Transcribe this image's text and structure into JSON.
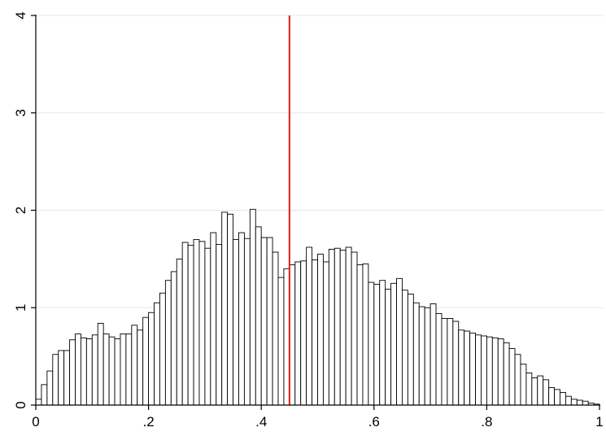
{
  "chart_data": {
    "type": "bar",
    "title": "",
    "xlabel": "",
    "ylabel": "",
    "xlim": [
      0,
      1
    ],
    "ylim": [
      0,
      4
    ],
    "grid": true,
    "x_ticks": [
      {
        "value": 0,
        "label": "0"
      },
      {
        "value": 0.2,
        "label": ".2"
      },
      {
        "value": 0.4,
        "label": ".4"
      },
      {
        "value": 0.6,
        "label": ".6"
      },
      {
        "value": 0.8,
        "label": ".8"
      },
      {
        "value": 1,
        "label": "1"
      }
    ],
    "y_ticks": [
      {
        "value": 0,
        "label": "0"
      },
      {
        "value": 1,
        "label": "1"
      },
      {
        "value": 2,
        "label": "2"
      },
      {
        "value": 3,
        "label": "3"
      },
      {
        "value": 4,
        "label": "4"
      }
    ],
    "bin_width": 0.01,
    "bin_start": 0,
    "values": [
      0.06,
      0.21,
      0.35,
      0.52,
      0.56,
      0.56,
      0.67,
      0.73,
      0.69,
      0.68,
      0.72,
      0.84,
      0.73,
      0.7,
      0.68,
      0.73,
      0.73,
      0.82,
      0.77,
      0.9,
      0.95,
      1.05,
      1.15,
      1.28,
      1.37,
      1.5,
      1.67,
      1.64,
      1.7,
      1.68,
      1.61,
      1.77,
      1.65,
      1.98,
      1.96,
      1.7,
      1.77,
      1.71,
      2.01,
      1.83,
      1.72,
      1.72,
      1.57,
      1.31,
      1.4,
      1.44,
      1.47,
      1.48,
      1.62,
      1.49,
      1.55,
      1.47,
      1.6,
      1.61,
      1.59,
      1.62,
      1.57,
      1.44,
      1.45,
      1.26,
      1.24,
      1.28,
      1.19,
      1.25,
      1.3,
      1.18,
      1.14,
      1.05,
      1.01,
      1.0,
      1.04,
      0.94,
      0.89,
      0.89,
      0.86,
      0.77,
      0.76,
      0.74,
      0.72,
      0.71,
      0.7,
      0.69,
      0.68,
      0.64,
      0.58,
      0.52,
      0.42,
      0.33,
      0.28,
      0.3,
      0.26,
      0.18,
      0.16,
      0.13,
      0.09,
      0.06,
      0.05,
      0.04,
      0.02,
      0.01
    ],
    "reference_line": {
      "x": 0.45,
      "color": "#e0191a"
    },
    "colors": {
      "bar_fill": "#ffffff",
      "bar_edge": "#000000",
      "grid": "#dfe9ef",
      "reference_line": "#e0191a"
    }
  }
}
